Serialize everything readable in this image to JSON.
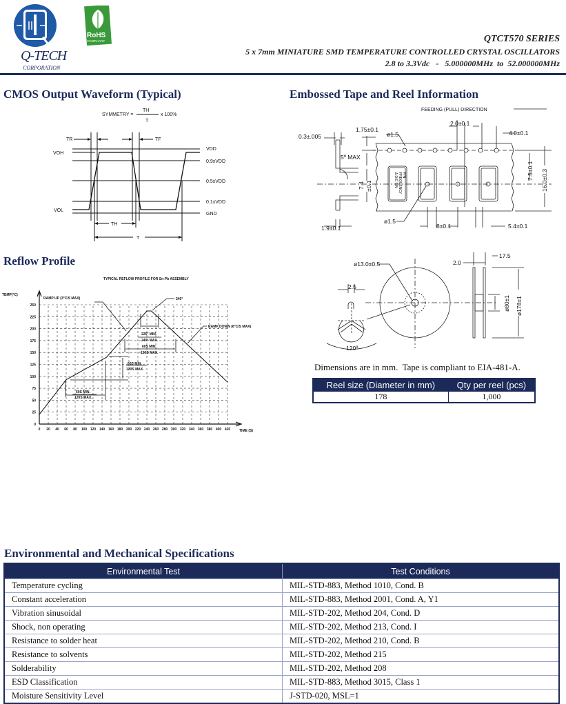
{
  "header": {
    "company": "Q-TECH",
    "company_sub": "CORPORATION",
    "rohs_top": "RoHS",
    "rohs_bottom": "COMPLIANT",
    "series": "QTCT570 SERIES",
    "product_line": "5 x 7mm MINIATURE SMD TEMPERATURE CONTROLLED CRYSTAL OSCILLATORS",
    "specs_line": "2.8 to 3.3Vdc   -   5.000000MHz  to  52.000000MHz",
    "brand_color": "#1c2a5a",
    "logo_color": "#1f5aa6"
  },
  "waveform": {
    "title": "CMOS Output Waveform (Typical)",
    "symmetry": "SYMMETRY =",
    "th": "TH",
    "t": "T",
    "times": "x 100%",
    "tr": "TR",
    "tf": "TF",
    "voh": "VOH",
    "vol": "VOL",
    "vdd": "VDD",
    "v09": "0.9xVDD",
    "v05": "0.5xVDD",
    "v01": "0.1xVDD",
    "gnd": "GND",
    "th_dim": "TH",
    "t_dim": "T"
  },
  "tape": {
    "title": "Embossed Tape and Reel Information",
    "feeding": "FEEDING (PULL) DIRECTION",
    "d_thick": "0.3±.005",
    "d_175": "1.75±0.1",
    "d_hole1": "ø1.5",
    "d_20": "2.0±0.1",
    "d_40": "4.0±0.1",
    "d_5max": "5º MAX",
    "d_74": "7.4",
    "d_74tol": "±0.1",
    "d_75": "7.5±0.1",
    "d_160": "16.0±0.3",
    "d_hole2": "ø1.5",
    "d_8": "8±0.1",
    "d_54": "5.4±0.1",
    "d_19": "1.9±0.1",
    "pocket_l1": "P/N",
    "pocket_l2": "FREQUENCY",
    "pocket_l3": "Δ D/C S/N",
    "reel_hub": "ø13.0±0.5",
    "reel_25": "2.5",
    "reel_120": "120º",
    "reel_20": "2.0",
    "reel_175": "17.5",
    "reel_80": "ø80±1",
    "reel_178": "ø178±1",
    "note": "Dimensions are in mm.  Tape is compliant to EIA-481-A.",
    "table": {
      "headers": [
        "Reel size (Diameter in mm)",
        "Qty per reel (pcs)"
      ],
      "row": [
        "178",
        "1,000"
      ]
    }
  },
  "reflow": {
    "title": "Reflow Profile"
  },
  "chart_data": {
    "type": "line",
    "title": "TYPICAL REFLOW PROFILE FOR Sn-Pb ASSEMBLY",
    "xlabel": "TIME (S)",
    "ylabel": "TEMP(°C)",
    "xlim": [
      0,
      420
    ],
    "ylim": [
      0,
      250
    ],
    "grid": true,
    "x_ticks": [
      0,
      20,
      40,
      60,
      80,
      100,
      120,
      140,
      160,
      180,
      200,
      220,
      240,
      260,
      280,
      300,
      320,
      340,
      360,
      380,
      400,
      420
    ],
    "y_ticks": [
      0,
      25,
      50,
      75,
      100,
      125,
      150,
      175,
      200,
      225,
      250
    ],
    "series": [
      {
        "x": [
          0,
          60,
          150,
          240,
          250,
          420
        ],
        "y": [
          20,
          93,
          140,
          237,
          237,
          88
        ]
      }
    ],
    "annotations": {
      "ramp_up": "RAMP UP (3°C/S MAX)",
      "peak": "240°",
      "ramp_down": "RAMP DOWN (6°C/S MAX)",
      "peak_min": "225° MIN.",
      "peak_max": "240° MAX.",
      "liq_min": "60S MIN.",
      "liq_max": "150S MAX.",
      "soak_v_min": "60S MIN.",
      "soak_v_max": "120S MAX.",
      "soak_h_min": "60S MIN.",
      "soak_h_max": "120S MAX."
    }
  },
  "env": {
    "title": "Environmental and Mechanical Specifications",
    "headers": [
      "Environmental Test",
      "Test Conditions"
    ],
    "rows": [
      [
        "Temperature cycling",
        "MIL-STD-883, Method 1010, Cond. B"
      ],
      [
        "Constant acceleration",
        "MIL-STD-883, Method 2001, Cond. A, Y1"
      ],
      [
        "Vibration sinusoidal",
        "MIL-STD-202, Method 204, Cond. D"
      ],
      [
        "Shock, non operating",
        "MIL-STD-202, Method 213, Cond. I"
      ],
      [
        "Resistance to solder heat",
        "MIL-STD-202, Method 210, Cond. B"
      ],
      [
        "Resistance to solvents",
        "MIL-STD-202, Method 215"
      ],
      [
        "Solderability",
        "MIL-STD-202, Method 208"
      ],
      [
        "ESD Classification",
        "MIL-STD-883, Method 3015, Class 1"
      ],
      [
        "Moisture Sensitivity Level",
        "J-STD-020, MSL=1"
      ]
    ]
  }
}
